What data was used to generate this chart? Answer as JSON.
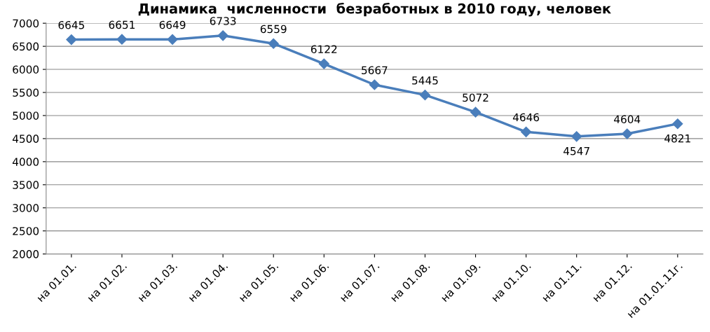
{
  "chart_data": {
    "type": "line",
    "title": "Динамика  численности  безработных в 2010 году, человек",
    "categories": [
      "на 01.01.",
      "на 01.02.",
      "на 01.03.",
      "на 01.04.",
      "на 01.05.",
      "на 01.06.",
      "на 01.07.",
      "на 01.08.",
      "на 01.09.",
      "на 01.10.",
      "на 01.11.",
      "на 01.12.",
      "на 01.01.11г."
    ],
    "series": [
      {
        "color": "#4a7ebb",
        "values": [
          6645,
          6651,
          6649,
          6733,
          6559,
          6122,
          5667,
          5445,
          5072,
          4646,
          4547,
          4604,
          4821
        ]
      }
    ],
    "ylim": [
      2000,
      7000
    ],
    "yticks": [
      2000,
      2500,
      3000,
      3500,
      4000,
      4500,
      5000,
      5500,
      6000,
      6500,
      7000
    ],
    "grid": "y",
    "marker": "diamond",
    "line_style": "solid",
    "data_labels": true
  }
}
